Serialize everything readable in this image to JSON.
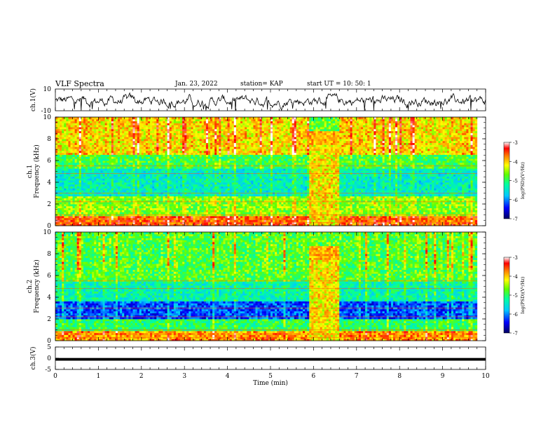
{
  "header": {
    "title": "VLF Spectra",
    "date": "Jan. 23, 2022",
    "station": "station= KAP",
    "start": "start UT = 10: 50: 1"
  },
  "chart_data": [
    {
      "type": "line",
      "panel": "ch1-waveform",
      "ylabel": "ch.1(V)",
      "ylim": [
        -10,
        10
      ],
      "yticks": [
        "10",
        "-10"
      ],
      "xlim": [
        0,
        10
      ],
      "color": "#000000"
    },
    {
      "type": "heatmap",
      "panel": "ch1-spectrogram",
      "ylabel": "ch.1\nFrequency (kHz)",
      "ylim": [
        0,
        10
      ],
      "yticks": [
        "0",
        "2",
        "4",
        "6",
        "8",
        "10"
      ],
      "xlim": [
        0,
        9.8
      ],
      "colorbar": {
        "label": "log(PSD)(V²/Hz)",
        "range": [
          -7,
          -3
        ],
        "ticks": [
          "-3",
          "-4",
          "-5",
          "-6",
          "-7"
        ]
      },
      "event": {
        "start_min": 5.9,
        "end_min": 6.6
      },
      "bands_khz": [
        {
          "from": 0,
          "to": 1.0,
          "level": -3.6
        },
        {
          "from": 1.0,
          "to": 2.8,
          "level": -4.6
        },
        {
          "from": 2.8,
          "to": 5.2,
          "level": -5.4
        },
        {
          "from": 5.2,
          "to": 6.5,
          "level": -4.9
        },
        {
          "from": 6.5,
          "to": 10,
          "level": -4.1
        }
      ]
    },
    {
      "type": "heatmap",
      "panel": "ch2-spectrogram",
      "ylabel": "ch.2\nFrequency (kHz)",
      "ylim": [
        0,
        10
      ],
      "yticks": [
        "0",
        "2",
        "4",
        "6",
        "8",
        "10"
      ],
      "xlim": [
        0,
        9.8
      ],
      "colorbar": {
        "label": "log(PSD)(V²/Hz)",
        "range": [
          -7,
          -3
        ],
        "ticks": [
          "-3",
          "-4",
          "-5",
          "-6",
          "-7"
        ]
      },
      "event": {
        "start_min": 5.9,
        "end_min": 6.6
      },
      "bands_khz": [
        {
          "from": 0,
          "to": 1.0,
          "level": -3.8
        },
        {
          "from": 1.0,
          "to": 2.0,
          "level": -5.0
        },
        {
          "from": 2.0,
          "to": 3.6,
          "level": -6.2
        },
        {
          "from": 3.6,
          "to": 5.5,
          "level": -5.3
        },
        {
          "from": 5.5,
          "to": 10,
          "level": -4.8
        }
      ]
    },
    {
      "type": "line",
      "panel": "ch3-waveform",
      "ylabel": "ch.3(V)",
      "ylim": [
        -5,
        5
      ],
      "yticks": [
        "5",
        "0",
        "-5"
      ],
      "xlim": [
        0,
        10
      ],
      "xlabel": "Time (min)",
      "xticks": [
        "0",
        "1",
        "2",
        "3",
        "4",
        "5",
        "6",
        "7",
        "8",
        "9",
        "10"
      ],
      "level_v": -0.5,
      "band_half_width_v": 0.6
    }
  ]
}
